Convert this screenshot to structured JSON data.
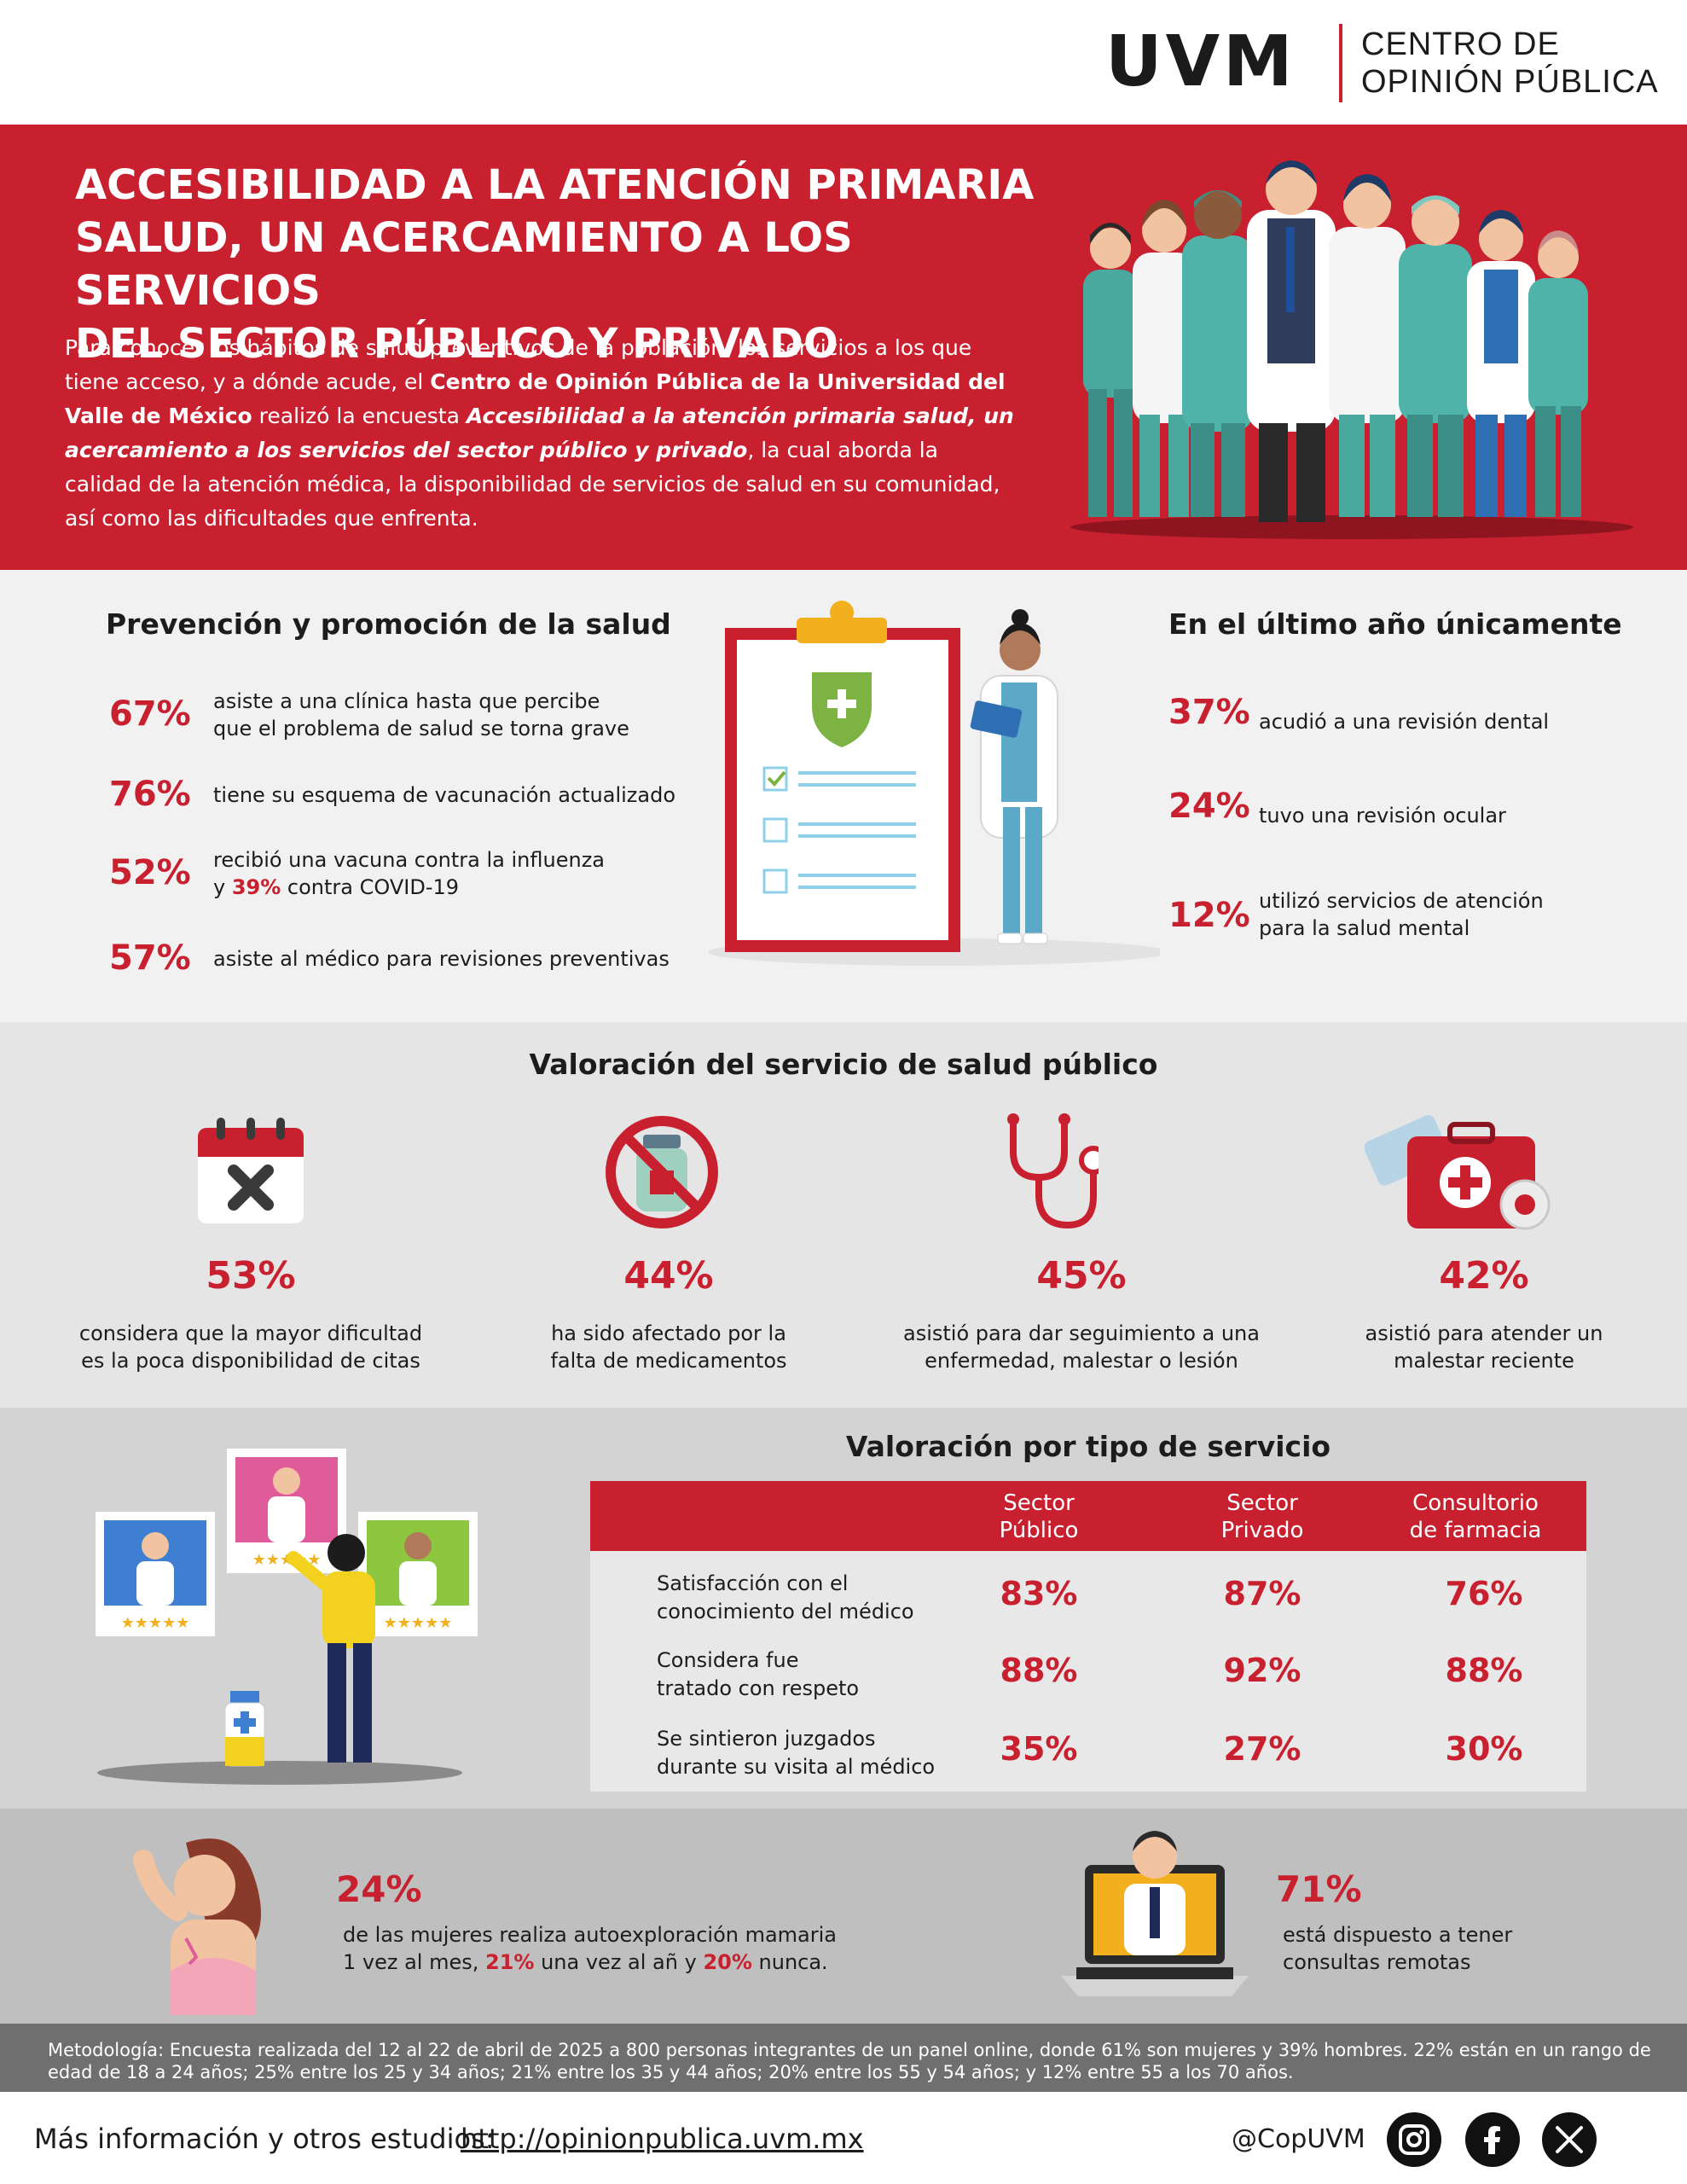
{
  "header": {
    "logo": "UVM",
    "org_line1": "CENTRO DE",
    "org_line2": "OPINIÓN PÚBLICA"
  },
  "hero": {
    "title_line1": "ACCESIBILIDAD A LA ATENCIÓN PRIMARIA",
    "title_line2": "SALUD, UN ACERCAMIENTO A LOS SERVICIOS",
    "title_line3": "DEL SECTOR PÚBLICO Y PRIVADO",
    "intro_1": "Para conocer los hábitos de salud preventivos de la población, los servicios a los que tiene acceso, y a dónde acude, el ",
    "intro_bold": "Centro de Opinión Pública de la Universidad del Valle de México",
    "intro_2": " realizó la encuesta ",
    "intro_italic": "Accesibilidad a la atención primaria salud, un acercamiento a los servicios del sector público y privado",
    "intro_3": ", la cual aborda la calidad de la atención médica, la disponibilidad de servicios de salud en su comunidad, así como las dificultades que enfrenta."
  },
  "prevention": {
    "heading": "Prevención y promoción de la salud",
    "items": [
      {
        "pct": "67%",
        "line1": "asiste a una clínica hasta que percibe",
        "line2": "que el problema de salud se torna grave"
      },
      {
        "pct": "76%",
        "line1": "tiene su esquema de vacunación actualizado",
        "line2": ""
      },
      {
        "pct": "52%",
        "line1": "recibió una vacuna contra la influenza",
        "line2_pre": "y ",
        "line2_pct": "39%",
        "line2_post": " contra COVID-19"
      },
      {
        "pct": "57%",
        "line1": "asiste al médico para revisiones preventivas",
        "line2": ""
      }
    ]
  },
  "last_year": {
    "heading": "En el último año únicamente",
    "items": [
      {
        "pct": "37%",
        "line1": "acudió a una revisión dental",
        "line2": ""
      },
      {
        "pct": "24%",
        "line1": "tuvo una revisión ocular",
        "line2": ""
      },
      {
        "pct": "12%",
        "line1": "utilizó servicios de atención",
        "line2": "para la salud mental"
      }
    ]
  },
  "public_service": {
    "heading": "Valoración del servicio de salud público",
    "items": [
      {
        "icon": "calendar-x-icon",
        "pct": "53%",
        "line1": "considera que la mayor dificultad",
        "line2": "es la poca disponibilidad de citas"
      },
      {
        "icon": "no-medicine-icon",
        "pct": "44%",
        "line1": "ha sido afectado por la",
        "line2": "falta de medicamentos"
      },
      {
        "icon": "stethoscope-icon",
        "pct": "45%",
        "line1": "asistió para dar seguimiento a una",
        "line2": "enfermedad, malestar o lesión"
      },
      {
        "icon": "first-aid-kit-icon",
        "pct": "42%",
        "line1": "asistió para atender un",
        "line2": "malestar reciente"
      }
    ]
  },
  "service_type": {
    "heading": "Valoración por tipo de servicio",
    "columns": [
      {
        "line1": "Sector",
        "line2": "Público"
      },
      {
        "line1": "Sector",
        "line2": "Privado"
      },
      {
        "line1": "Consultorio",
        "line2": "de farmacia"
      }
    ],
    "rows": [
      {
        "label1": "Satisfacción con el",
        "label2": "conocimiento del médico",
        "values": [
          "83%",
          "87%",
          "76%"
        ]
      },
      {
        "label1": "Considera fue",
        "label2": "tratado con respeto",
        "values": [
          "88%",
          "92%",
          "88%"
        ]
      },
      {
        "label1": "Se sintieron juzgados",
        "label2": "durante su visita al médico",
        "values": [
          "35%",
          "27%",
          "30%"
        ]
      }
    ]
  },
  "women": {
    "pct": "24%",
    "line1": "de las mujeres realiza autoexploración mamaria",
    "line2_pre": "1 vez al mes, ",
    "line2_b1": "21%",
    "line2_mid": " una vez al añ y ",
    "line2_b2": "20%",
    "line2_post": " nunca."
  },
  "remote": {
    "pct": "71%",
    "line1": "está dispuesto a tener",
    "line2": "consultas remotas"
  },
  "methodology": {
    "text": "Metodología: Encuesta realizada del 12 al 22 de abril de 2025 a 800 personas integrantes de un panel online, donde 61% son mujeres y 39% hombres. 22% están en un rango de edad de 18 a 24 años; 25% entre los 25 y 34 años; 21% entre los 35 y 44 años; 20% entre los 55 y 54 años; y 12% entre 55 a los 70 años."
  },
  "footer": {
    "label": "Más información y otros estudios:",
    "link": "http://opinionpublica.uvm.mx",
    "handle": "@CopUVM",
    "socials": [
      "instagram-icon",
      "facebook-icon",
      "x-icon"
    ]
  },
  "colors": {
    "brand_red": "#c8202f",
    "dark": "#1c1c1c",
    "teal": "#4fb3a9"
  }
}
